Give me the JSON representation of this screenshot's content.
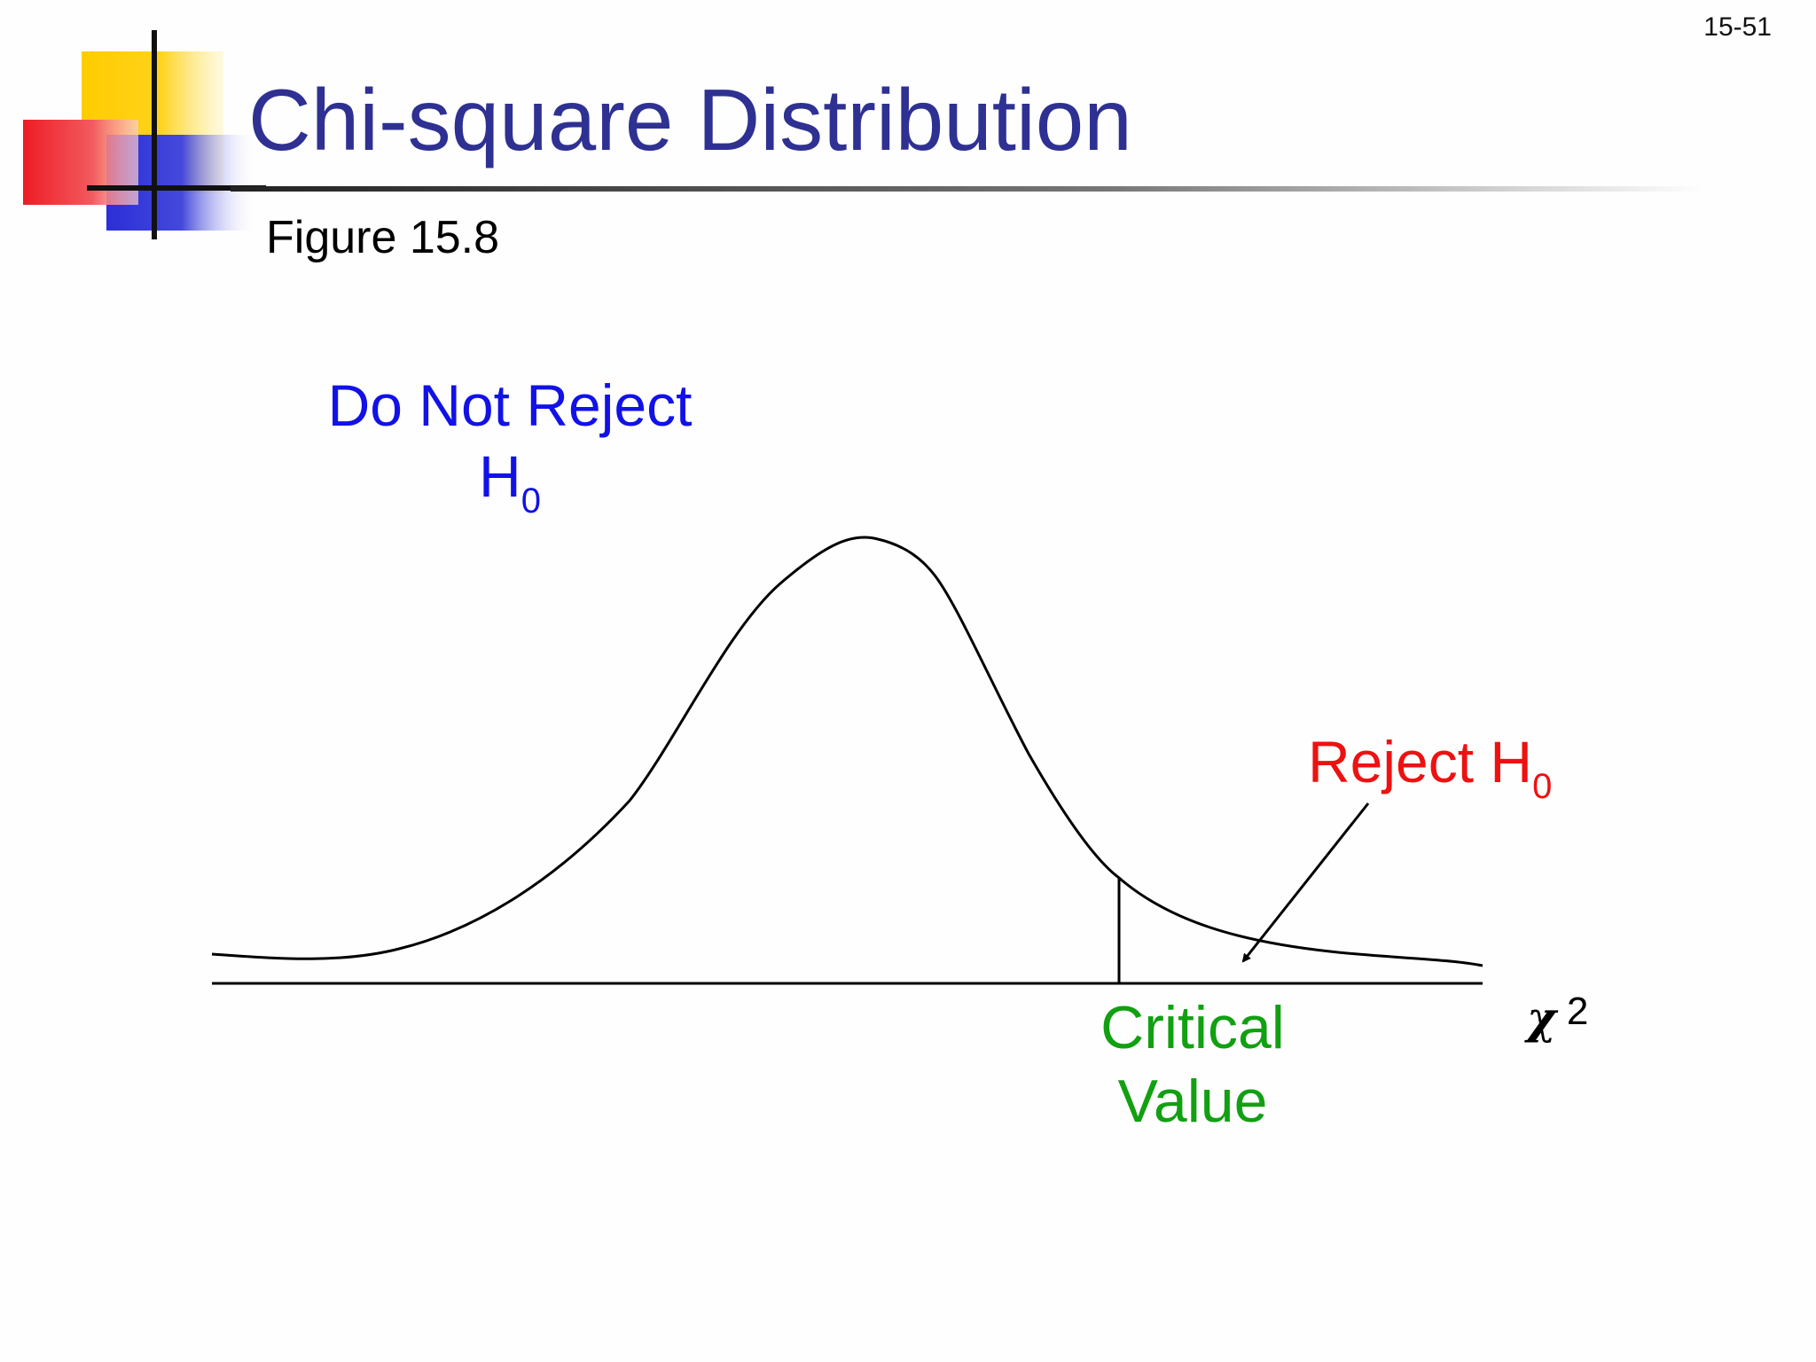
{
  "slide": {
    "number": "15-51",
    "title": "Chi-square Distribution",
    "subtitle": "Figure 15.8"
  },
  "diagram": {
    "do_not_reject": {
      "line1": "Do Not Reject",
      "main": "H",
      "sub": "0",
      "color": "#1111e8"
    },
    "reject": {
      "main": "Reject H",
      "sub": "0",
      "color": "#ee1111"
    },
    "critical_value": {
      "line1": "Critical",
      "line2": "Value",
      "color": "#11a011"
    },
    "axis_label": {
      "symbol": "χ",
      "exponent": "2"
    }
  },
  "colors": {
    "title": "#2e3192",
    "deco_yellow": "#ffcc00",
    "deco_red": "#ee1c25",
    "deco_blue": "#2b2fd6"
  }
}
